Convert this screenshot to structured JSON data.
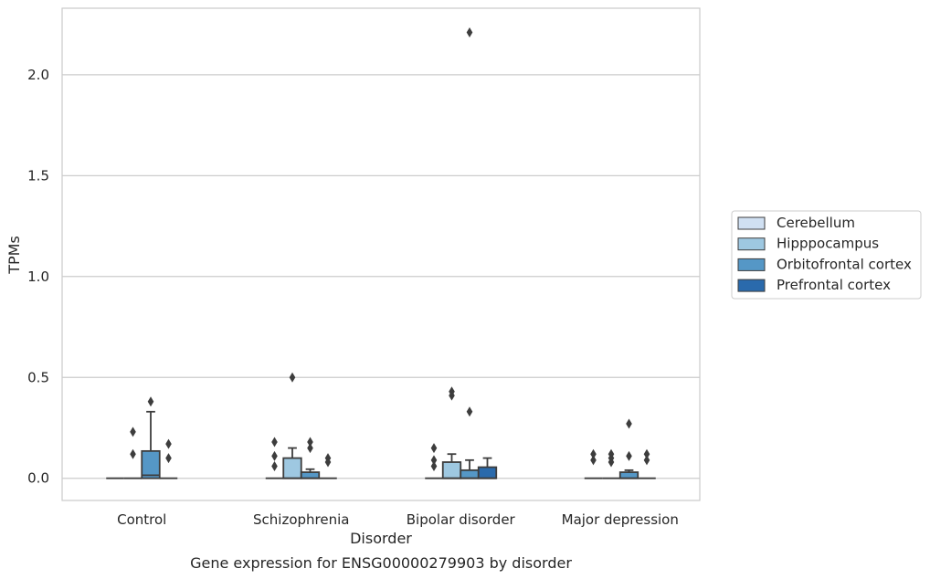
{
  "chart_data": {
    "type": "box",
    "xlabel": "Disorder",
    "ylabel": "TPMs",
    "caption": "Gene expression for ENSG00000279903 by disorder",
    "categories": [
      "Control",
      "Schizophrenia",
      "Bipolar disorder",
      "Major depression"
    ],
    "ylim": [
      -0.11,
      2.33
    ],
    "yticks": [
      0.0,
      0.5,
      1.0,
      1.5,
      2.0
    ],
    "ytick_labels": [
      "0.0",
      "0.5",
      "1.0",
      "1.5",
      "2.0"
    ],
    "grid": true,
    "legend_position": "right",
    "series": [
      {
        "name": "Cerebellum",
        "color": "#d0e0f2",
        "boxes": [
          {
            "category": "Control",
            "q1": 0,
            "median": 0,
            "q3": 0,
            "whisker_low": 0,
            "whisker_high": 0,
            "outliers": []
          },
          {
            "category": "Schizophrenia",
            "q1": 0,
            "median": 0,
            "q3": 0,
            "whisker_low": 0,
            "whisker_high": 0,
            "outliers": [
              0.06,
              0.11,
              0.18
            ]
          },
          {
            "category": "Bipolar disorder",
            "q1": 0,
            "median": 0,
            "q3": 0,
            "whisker_low": 0,
            "whisker_high": 0,
            "outliers": [
              0.06,
              0.09,
              0.15
            ]
          },
          {
            "category": "Major depression",
            "q1": 0,
            "median": 0,
            "q3": 0,
            "whisker_low": 0,
            "whisker_high": 0,
            "outliers": [
              0.09,
              0.12
            ]
          }
        ]
      },
      {
        "name": "Hipppocampus",
        "color": "#9ec8e1",
        "boxes": [
          {
            "category": "Control",
            "q1": 0,
            "median": 0,
            "q3": 0,
            "whisker_low": 0,
            "whisker_high": 0,
            "outliers": [
              0.12,
              0.23
            ]
          },
          {
            "category": "Schizophrenia",
            "q1": 0,
            "median": 0,
            "q3": 0.1,
            "whisker_low": 0,
            "whisker_high": 0.15,
            "outliers": [
              0.5
            ]
          },
          {
            "category": "Bipolar disorder",
            "q1": 0,
            "median": 0,
            "q3": 0.08,
            "whisker_low": 0,
            "whisker_high": 0.12,
            "outliers": [
              0.41,
              0.43
            ]
          },
          {
            "category": "Major depression",
            "q1": 0,
            "median": 0,
            "q3": 0,
            "whisker_low": 0,
            "whisker_high": 0,
            "outliers": [
              0.08,
              0.1,
              0.12
            ]
          }
        ]
      },
      {
        "name": "Orbitofrontal cortex",
        "color": "#5597c6",
        "boxes": [
          {
            "category": "Control",
            "q1": 0,
            "median": 0.015,
            "q3": 0.135,
            "whisker_low": 0,
            "whisker_high": 0.33,
            "outliers": [
              0.38
            ]
          },
          {
            "category": "Schizophrenia",
            "q1": 0,
            "median": 0,
            "q3": 0.03,
            "whisker_low": 0,
            "whisker_high": 0.045,
            "outliers": [
              0.15,
              0.18
            ]
          },
          {
            "category": "Bipolar disorder",
            "q1": 0,
            "median": 0,
            "q3": 0.04,
            "whisker_low": 0,
            "whisker_high": 0.09,
            "outliers": [
              0.33,
              2.21
            ]
          },
          {
            "category": "Major depression",
            "q1": 0,
            "median": 0,
            "q3": 0.03,
            "whisker_low": 0,
            "whisker_high": 0.04,
            "outliers": [
              0.11,
              0.27
            ]
          }
        ]
      },
      {
        "name": "Prefrontal cortex",
        "color": "#2a6aac",
        "boxes": [
          {
            "category": "Control",
            "q1": 0,
            "median": 0,
            "q3": 0,
            "whisker_low": 0,
            "whisker_high": 0,
            "outliers": [
              0.1,
              0.17
            ]
          },
          {
            "category": "Schizophrenia",
            "q1": 0,
            "median": 0,
            "q3": 0,
            "whisker_low": 0,
            "whisker_high": 0,
            "outliers": [
              0.08,
              0.1
            ]
          },
          {
            "category": "Bipolar disorder",
            "q1": 0,
            "median": 0,
            "q3": 0.055,
            "whisker_low": 0,
            "whisker_high": 0.1,
            "outliers": []
          },
          {
            "category": "Major depression",
            "q1": 0,
            "median": 0,
            "q3": 0,
            "whisker_low": 0,
            "whisker_high": 0,
            "outliers": [
              0.09,
              0.12
            ]
          }
        ]
      }
    ],
    "styles": {
      "grid_color": "#cccccc",
      "frame_color": "#cccccc",
      "line_color": "#3d3d3d"
    }
  }
}
